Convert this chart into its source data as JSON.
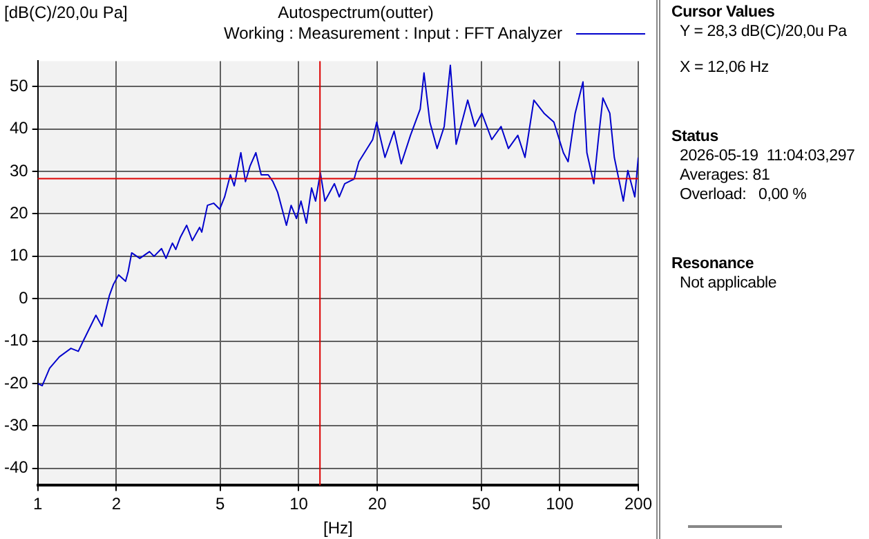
{
  "chart_data": {
    "type": "line",
    "title": "Autospectrum(outter)",
    "ylabel": "[dB(C)/20,0u Pa]",
    "xlabel": "[Hz]",
    "log": "x",
    "xlim": [
      1,
      200
    ],
    "xticks": [
      1,
      2,
      5,
      10,
      20,
      50,
      100,
      200
    ],
    "ylim": [
      -44,
      56
    ],
    "yticks": [
      -40,
      -30,
      -20,
      -10,
      0,
      10,
      20,
      30,
      40,
      50
    ],
    "grid": true,
    "legend": "top right",
    "line_style": "solid",
    "marker": "none",
    "x": [
      1,
      1.04,
      1.11,
      1.21,
      1.34,
      1.43,
      1.49,
      1.67,
      1.76,
      1.88,
      1.95,
      2.04,
      2.17,
      2.22,
      2.29,
      2.46,
      2.68,
      2.79,
      2.98,
      3.1,
      3.28,
      3.38,
      3.52,
      3.72,
      3.91,
      4.17,
      4.25,
      4.47,
      4.72,
      4.98,
      5.2,
      5.47,
      5.66,
      6,
      6.25,
      6.51,
      6.85,
      7.18,
      7.64,
      7.96,
      8.3,
      8.97,
      9.35,
      9.8,
      10.2,
      10.7,
      11.2,
      11.6,
      12.1,
      12.6,
      13.7,
      14.3,
      15,
      16.3,
      17,
      19.2,
      19.9,
      21.4,
      23.2,
      24.7,
      26.8,
      29.2,
      30.2,
      31.8,
      33.9,
      36.1,
      38.1,
      40.1,
      44.4,
      47.3,
      50.3,
      54.9,
      59.6,
      63.6,
      69.1,
      73.6,
      79.6,
      87.1,
      95,
      103.3,
      107.7,
      114.6,
      122.8,
      127.1,
      135.1,
      140.6,
      146.4,
      155.6,
      161.9,
      175.3,
      182.4,
      194,
      200
    ],
    "series": [
      {
        "name": "Working : Measurement : Input : FFT Analyzer",
        "color": "#0000cc",
        "values": [
          -20,
          -20.5,
          -16.4,
          -13.7,
          -11.7,
          -12.4,
          -10.1,
          -3.9,
          -6.5,
          0.7,
          3.4,
          5.6,
          4.1,
          6.4,
          10.8,
          9.5,
          11.1,
          10,
          11.8,
          9.5,
          13.1,
          11.6,
          14.5,
          17.3,
          13.7,
          16.8,
          15.7,
          22,
          22.5,
          21.1,
          24,
          29.2,
          26.6,
          34.4,
          27.6,
          31.3,
          34.4,
          29.2,
          29.2,
          27.6,
          25.1,
          17.3,
          22,
          18.9,
          23,
          17.8,
          26.1,
          23,
          29.7,
          23,
          27.1,
          24,
          27.1,
          28.2,
          32.3,
          37.5,
          41.6,
          33.3,
          39.5,
          31.8,
          38.5,
          44.7,
          53.2,
          41.6,
          35.4,
          40.6,
          55,
          36.4,
          46.8,
          40.6,
          43.7,
          37.5,
          40.6,
          35.4,
          38.5,
          33.3,
          46.8,
          43.7,
          41.6,
          34.4,
          32.3,
          43.7,
          51.1,
          34.4,
          27.1,
          37.5,
          47.3,
          43.7,
          33.3,
          23,
          30.2,
          24,
          33.3
        ]
      }
    ],
    "ref_lines": [
      {
        "axis": "x",
        "value": 12.06,
        "color": "#dd0000"
      },
      {
        "axis": "y",
        "value": 28.3,
        "color": "#dd0000"
      }
    ],
    "annotations": [
      "Cursor Values",
      "Y = 28,3 dB(C)/20,0u Pa",
      "X = 12,06 Hz",
      "Status",
      "2026-05-19  11:04:03,297",
      "Averages: 81",
      "Overload:   0,00 %",
      "Resonance",
      "Not applicable"
    ]
  }
}
